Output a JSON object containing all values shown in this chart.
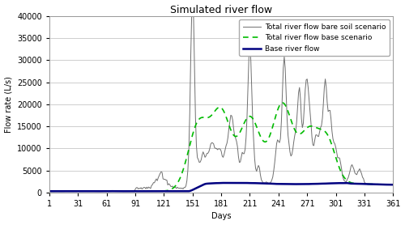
{
  "title": "Simulated river flow",
  "xlabel": "Days",
  "ylabel": "Flow rate (L/s)",
  "xlim": [
    1,
    361
  ],
  "ylim": [
    0,
    40000
  ],
  "yticks": [
    0,
    5000,
    10000,
    15000,
    20000,
    25000,
    30000,
    35000,
    40000
  ],
  "xticks": [
    1,
    31,
    61,
    91,
    121,
    151,
    181,
    211,
    241,
    271,
    301,
    331,
    361
  ],
  "legend_labels": [
    "Base river flow",
    "Total river flow base scenario",
    "Total river flow bare soil scenario"
  ],
  "line_colors": [
    "#000080",
    "#00BB00",
    "#707070"
  ],
  "background_color": "#FFFFFF",
  "title_fontsize": 9,
  "axis_fontsize": 7,
  "legend_fontsize": 6.5,
  "grid_color": "#BBBBBB",
  "spine_color": "#999999"
}
